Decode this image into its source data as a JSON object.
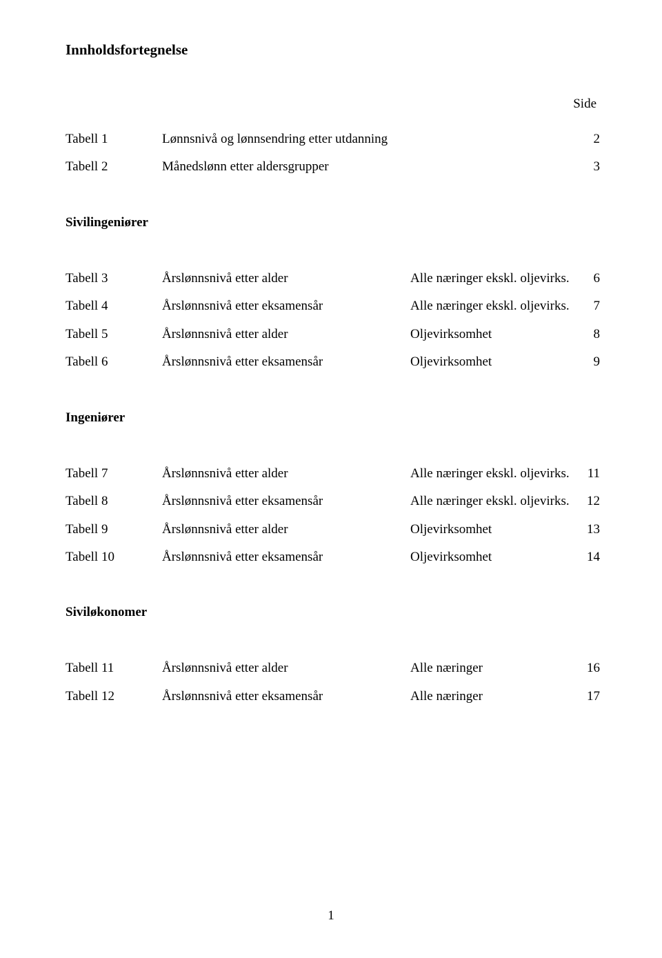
{
  "title": "Innholdsfortegnelse",
  "side_label": "Side",
  "page_number": "1",
  "sections": [
    {
      "heading": null,
      "rows": [
        {
          "label": "Tabell 1",
          "desc": "Lønnsnivå og lønnsendring etter utdanning",
          "cat": "",
          "page": "2"
        },
        {
          "label": "Tabell 2",
          "desc": "Månedslønn etter aldersgrupper",
          "cat": "",
          "page": "3"
        }
      ]
    },
    {
      "heading": "Sivilingeniører",
      "rows": [
        {
          "label": "Tabell 3",
          "desc": "Årslønnsnivå etter alder",
          "cat": "Alle næringer ekskl. oljevirks.",
          "page": "6"
        },
        {
          "label": "Tabell 4",
          "desc": "Årslønnsnivå etter eksamensår",
          "cat": "Alle næringer ekskl. oljevirks.",
          "page": "7"
        },
        {
          "label": "Tabell 5",
          "desc": "Årslønnsnivå etter alder",
          "cat": "Oljevirksomhet",
          "page": "8"
        },
        {
          "label": "Tabell 6",
          "desc": "Årslønnsnivå etter eksamensår",
          "cat": "Oljevirksomhet",
          "page": "9"
        }
      ]
    },
    {
      "heading": "Ingeniører",
      "rows": [
        {
          "label": "Tabell 7",
          "desc": "Årslønnsnivå etter alder",
          "cat": "Alle næringer ekskl. oljevirks.",
          "page": "11"
        },
        {
          "label": "Tabell 8",
          "desc": "Årslønnsnivå etter eksamensår",
          "cat": "Alle næringer ekskl. oljevirks.",
          "page": "12"
        },
        {
          "label": "Tabell 9",
          "desc": "Årslønnsnivå etter alder",
          "cat": "Oljevirksomhet",
          "page": "13"
        },
        {
          "label": "Tabell 10",
          "desc": "Årslønnsnivå etter eksamensår",
          "cat": "Oljevirksomhet",
          "page": "14"
        }
      ]
    },
    {
      "heading": "Siviløkonomer",
      "rows": [
        {
          "label": "Tabell 11",
          "desc": "Årslønnsnivå etter alder",
          "cat": "Alle næringer",
          "page": "16"
        },
        {
          "label": "Tabell 12",
          "desc": "Årslønnsnivå etter eksamensår",
          "cat": "Alle næringer",
          "page": "17"
        }
      ]
    }
  ]
}
